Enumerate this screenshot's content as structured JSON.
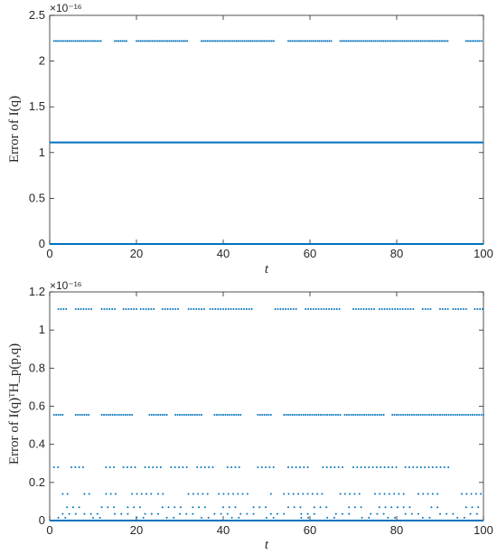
{
  "chart_data": [
    {
      "type": "scatter",
      "multiplier_label": "×10⁻¹⁶",
      "xlabel": "t",
      "ylabel": "Error of I(q)",
      "xlim": [
        0,
        100
      ],
      "ylim": [
        0,
        2.5
      ],
      "xticks": [
        "0",
        "20",
        "40",
        "60",
        "80",
        "100"
      ],
      "yticks": [
        "0",
        "0.5",
        "1",
        "1.5",
        "2",
        "2.5"
      ],
      "ytick_values": [
        0,
        0.5,
        1,
        1.5,
        2,
        2.5
      ],
      "grid": false,
      "color": "#0072BD",
      "levels": [
        {
          "y": 0,
          "solid": true
        },
        {
          "y": 1.11,
          "solid": true
        },
        {
          "y": 2.22,
          "ranges": [
            [
              1,
              12
            ],
            [
              15,
              18
            ],
            [
              20,
              32
            ],
            [
              35,
              52
            ],
            [
              55,
              65
            ],
            [
              67,
              92
            ],
            [
              96,
              100
            ]
          ],
          "step": 0.45
        }
      ]
    },
    {
      "type": "scatter",
      "multiplier_label": "×10⁻¹⁶",
      "xlabel": "t",
      "ylabel": "Error of I(q)ᵀH_p(p,q)",
      "xlim": [
        0,
        100
      ],
      "ylim": [
        0,
        1.2
      ],
      "xticks": [
        "0",
        "20",
        "40",
        "60",
        "80",
        "100"
      ],
      "yticks": [
        "0",
        "0.2",
        "0.4",
        "0.6",
        "0.8",
        "1",
        "1.2"
      ],
      "ytick_values": [
        0,
        0.2,
        0.4,
        0.6,
        0.8,
        1.0,
        1.2
      ],
      "grid": false,
      "color": "#0072BD",
      "levels": [
        {
          "y": 0,
          "solid": true
        },
        {
          "y": 1.11,
          "ranges": [
            [
              2,
              4
            ],
            [
              6,
              10
            ],
            [
              12,
              15
            ],
            [
              17,
              20
            ],
            [
              21,
              24
            ],
            [
              26,
              30
            ],
            [
              32,
              36
            ],
            [
              37,
              47
            ],
            [
              52,
              57
            ],
            [
              59,
              67
            ],
            [
              70,
              75
            ],
            [
              76,
              84
            ],
            [
              86,
              88
            ],
            [
              90,
              92
            ],
            [
              93,
              96
            ],
            [
              98,
              100
            ]
          ],
          "step": 0.6
        },
        {
          "y": 0.555,
          "ranges": [
            [
              1,
              3
            ],
            [
              6,
              9
            ],
            [
              12,
              19
            ],
            [
              23,
              27
            ],
            [
              29,
              35
            ],
            [
              38,
              44
            ],
            [
              48,
              51
            ],
            [
              54,
              67
            ],
            [
              68,
              77
            ],
            [
              79,
              100
            ]
          ],
          "step": 0.5
        },
        {
          "y": 0.28,
          "ranges": [
            [
              1,
              2
            ],
            [
              5,
              8
            ],
            [
              13,
              15
            ],
            [
              17,
              20
            ],
            [
              22,
              26
            ],
            [
              28,
              32
            ],
            [
              34,
              38
            ],
            [
              41,
              44
            ],
            [
              48,
              52
            ],
            [
              55,
              60
            ],
            [
              63,
              68
            ],
            [
              70,
              80
            ],
            [
              82,
              92
            ]
          ],
          "step": 0.9
        },
        {
          "y": 0.14,
          "ranges": [
            [
              3,
              5
            ],
            [
              8,
              10
            ],
            [
              13,
              16
            ],
            [
              19,
              24
            ],
            [
              25,
              27
            ],
            [
              32,
              37
            ],
            [
              39,
              46
            ],
            [
              51,
              52
            ],
            [
              54,
              63
            ],
            [
              67,
              72
            ],
            [
              75,
              82
            ],
            [
              85,
              90
            ],
            [
              95,
              100
            ]
          ],
          "step": 1.1
        },
        {
          "y": 0.07,
          "ranges": [
            [
              4,
              8
            ],
            [
              12,
              15
            ],
            [
              18,
              22
            ],
            [
              26,
              31
            ],
            [
              33,
              37
            ],
            [
              40,
              44
            ],
            [
              47,
              50
            ],
            [
              55,
              58
            ],
            [
              61,
              64
            ],
            [
              69,
              72
            ],
            [
              76,
              83
            ],
            [
              88,
              90
            ],
            [
              96,
              99
            ]
          ],
          "step": 1.4
        },
        {
          "y": 0.035,
          "ranges": [
            [
              3,
              6
            ],
            [
              8,
              12
            ],
            [
              15,
              18
            ],
            [
              22,
              25
            ],
            [
              30,
              33
            ],
            [
              38,
              41
            ],
            [
              44,
              47
            ],
            [
              51,
              54
            ],
            [
              58,
              61
            ],
            [
              66,
              69
            ],
            [
              74,
              77
            ],
            [
              82,
              85
            ],
            [
              90,
              93
            ],
            [
              97,
              99
            ]
          ],
          "step": 1.5
        },
        {
          "y": 0.015,
          "ranges": [
            [
              2,
              5
            ],
            [
              10,
              13
            ],
            [
              20,
              23
            ],
            [
              27,
              30
            ],
            [
              35,
              38
            ],
            [
              42,
              45
            ],
            [
              50,
              53
            ],
            [
              58,
              61
            ],
            [
              64,
              67
            ],
            [
              72,
              75
            ],
            [
              78,
              81
            ],
            [
              86,
              89
            ],
            [
              94,
              97
            ]
          ],
          "step": 1.6
        }
      ]
    }
  ]
}
